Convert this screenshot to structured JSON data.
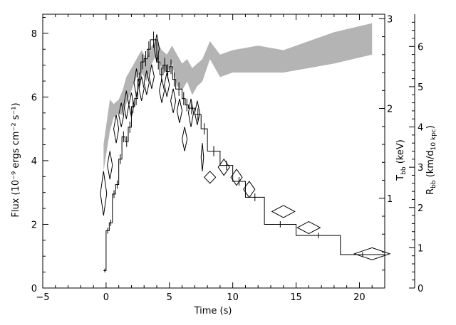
{
  "chart_data": {
    "type": "line",
    "xlabel": "Time (s)",
    "ylabel_left": "Flux (10⁻⁹ ergs cm⁻² s⁻¹)",
    "ylabel_right_temperature": "T",
    "ylabel_right_temperature_sub": "bb",
    "ylabel_right_temperature_unit": " (keV)",
    "ylabel_right_radius": "R",
    "ylabel_right_radius_sub": "bb",
    "ylabel_right_radius_unit": " (km/d",
    "ylabel_right_radius_unit_sub": "10 kpc",
    "ylabel_right_radius_unit_end": ")",
    "xlim": [
      -5,
      22
    ],
    "ylim_flux": [
      0,
      8.6
    ],
    "ylim_temperature_keV": [
      0,
      3.05
    ],
    "ylim_radius": [
      0,
      6.8
    ],
    "x_ticks": [
      -5,
      0,
      5,
      10,
      15,
      20
    ],
    "flux_ticks": [
      0,
      2,
      4,
      6,
      8
    ],
    "temperature_ticks": [
      1,
      2,
      3
    ],
    "radius_ticks": [
      0,
      1,
      2,
      3,
      4,
      5,
      6
    ],
    "grid": false,
    "legend": "none",
    "colors": {
      "temperature_band": "#b4b4b4",
      "lines": "#000000",
      "background": "#ffffff"
    },
    "series": [
      {
        "type": "step",
        "role": "flux",
        "points": [
          [
            -0.2,
            0.55
          ],
          [
            0.0,
            1.8
          ],
          [
            0.25,
            2.05
          ],
          [
            0.5,
            2.95
          ],
          [
            0.75,
            3.25
          ],
          [
            1.0,
            4.05
          ],
          [
            1.25,
            4.75
          ],
          [
            1.5,
            4.6
          ],
          [
            1.75,
            5.05
          ],
          [
            2.0,
            5.7
          ],
          [
            2.25,
            5.95
          ],
          [
            2.5,
            6.55
          ],
          [
            2.75,
            7.1
          ],
          [
            3.0,
            7.2
          ],
          [
            3.25,
            7.5
          ],
          [
            3.5,
            7.8
          ],
          [
            4.0,
            7.1
          ],
          [
            4.25,
            6.7
          ],
          [
            4.5,
            7.0
          ],
          [
            4.75,
            6.8
          ],
          [
            5.0,
            6.95
          ],
          [
            5.25,
            6.55
          ],
          [
            5.5,
            6.25
          ],
          [
            6.0,
            5.95
          ],
          [
            6.25,
            5.75
          ],
          [
            6.5,
            5.65
          ],
          [
            7.0,
            5.45
          ],
          [
            7.5,
            5.0
          ],
          [
            8.0,
            4.3
          ],
          [
            9.0,
            3.85
          ],
          [
            10.0,
            3.35
          ],
          [
            11.0,
            2.85
          ],
          [
            12.5,
            2.0
          ],
          [
            15.0,
            1.65
          ],
          [
            18.5,
            1.05
          ],
          [
            22.0,
            1.05
          ]
        ]
      },
      {
        "type": "band",
        "role": "temperature_keV",
        "x": [
          -0.2,
          0.3,
          0.6,
          1.0,
          1.3,
          1.6,
          2.0,
          2.4,
          2.8,
          3.2,
          3.6,
          4.0,
          4.4,
          4.8,
          5.2,
          5.6,
          6.0,
          6.4,
          6.8,
          7.2,
          7.6,
          8.2,
          9.0,
          10.0,
          12.0,
          14.0,
          16.0,
          18.0,
          21.0
        ],
        "lower": [
          1.3,
          1.75,
          1.9,
          1.95,
          1.92,
          2.05,
          2.2,
          2.35,
          2.4,
          2.3,
          2.5,
          2.6,
          2.45,
          2.4,
          2.5,
          2.25,
          2.2,
          2.3,
          2.15,
          2.25,
          2.3,
          2.55,
          2.35,
          2.4,
          2.4,
          2.4,
          2.45,
          2.5,
          2.6
        ],
        "upper": [
          1.6,
          2.1,
          2.05,
          2.1,
          2.2,
          2.35,
          2.45,
          2.55,
          2.65,
          2.55,
          2.7,
          2.75,
          2.65,
          2.6,
          2.7,
          2.6,
          2.5,
          2.55,
          2.45,
          2.5,
          2.55,
          2.75,
          2.6,
          2.65,
          2.7,
          2.65,
          2.75,
          2.85,
          2.95
        ]
      },
      {
        "type": "diamonds",
        "role": "radius",
        "points": [
          [
            -0.2,
            2.35,
            0.25,
            0.55
          ],
          [
            0.3,
            3.05,
            0.2,
            0.35
          ],
          [
            0.8,
            3.95,
            0.2,
            0.35
          ],
          [
            1.2,
            4.3,
            0.2,
            0.3
          ],
          [
            1.6,
            4.55,
            0.2,
            0.35
          ],
          [
            2.0,
            4.55,
            0.2,
            0.3
          ],
          [
            2.4,
            5.1,
            0.2,
            0.35
          ],
          [
            2.8,
            4.95,
            0.2,
            0.3
          ],
          [
            3.2,
            5.1,
            0.2,
            0.3
          ],
          [
            3.6,
            5.25,
            0.2,
            0.3
          ],
          [
            4.0,
            5.95,
            0.2,
            0.35
          ],
          [
            4.4,
            4.9,
            0.2,
            0.3
          ],
          [
            4.8,
            5.05,
            0.2,
            0.3
          ],
          [
            5.3,
            4.65,
            0.2,
            0.3
          ],
          [
            5.8,
            4.4,
            0.2,
            0.3
          ],
          [
            6.2,
            3.7,
            0.2,
            0.3
          ],
          [
            6.7,
            4.35,
            0.2,
            0.35
          ],
          [
            7.2,
            4.35,
            0.2,
            0.3
          ],
          [
            7.6,
            3.25,
            0.1,
            0.35
          ],
          [
            8.2,
            2.75,
            0.45,
            0.15
          ],
          [
            9.3,
            3.0,
            0.45,
            0.2
          ],
          [
            10.3,
            2.75,
            0.45,
            0.2
          ],
          [
            11.3,
            2.45,
            0.45,
            0.2
          ],
          [
            14.0,
            1.9,
            0.9,
            0.15
          ],
          [
            16.0,
            1.5,
            0.9,
            0.15
          ],
          [
            21.0,
            0.85,
            1.4,
            0.15
          ]
        ]
      }
    ]
  }
}
